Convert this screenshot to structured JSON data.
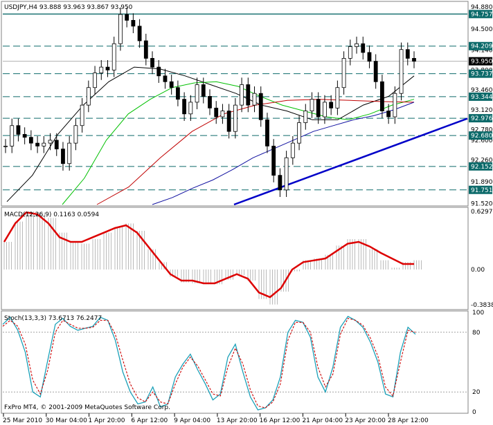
{
  "chart_data": [
    {
      "type": "candlestick",
      "title": "USDJPY,H4",
      "ohlc_text": "93.888 93.963 93.867 93.950",
      "ylim": [
        91.5,
        94.95
      ],
      "price_ticks": [
        "94.880",
        "94.500",
        "94.140",
        "93.800",
        "93.460",
        "93.120",
        "92.780",
        "92.600",
        "92.260",
        "91.890",
        "91.520"
      ],
      "price_tick_values": [
        94.88,
        94.5,
        94.14,
        93.8,
        93.46,
        93.12,
        92.78,
        92.6,
        92.26,
        91.89,
        91.52
      ],
      "levels": [
        {
          "value": 94.757,
          "label": "94.757",
          "style": "solid"
        },
        {
          "value": 94.209,
          "label": "94.209",
          "style": "dashed"
        },
        {
          "value": 93.737,
          "label": "93.737",
          "style": "dashed"
        },
        {
          "value": 93.344,
          "label": "93.344",
          "style": "dashed"
        },
        {
          "value": 92.976,
          "label": "92.976",
          "style": "dashed"
        },
        {
          "value": 92.68,
          "label": "92.680",
          "style": "dashed"
        },
        {
          "value": 92.152,
          "label": "92.152",
          "style": "dashed"
        },
        {
          "value": 91.751,
          "label": "91.751",
          "style": "dashed"
        }
      ],
      "current_price": {
        "value": 93.95,
        "label": "93.950"
      },
      "close_series": [
        92.5,
        92.85,
        92.7,
        92.65,
        92.55,
        92.5,
        92.55,
        92.6,
        92.45,
        92.2,
        92.55,
        92.85,
        93.2,
        93.5,
        93.75,
        93.85,
        93.8,
        94.25,
        94.75,
        94.65,
        94.55,
        94.3,
        94.0,
        93.85,
        93.7,
        93.6,
        93.5,
        93.3,
        93.05,
        93.25,
        93.55,
        93.35,
        93.15,
        93.0,
        93.1,
        92.75,
        93.2,
        93.55,
        93.2,
        93.4,
        92.95,
        92.5,
        92.0,
        91.75,
        92.3,
        92.55,
        92.9,
        93.1,
        93.3,
        93.0,
        93.25,
        93.15,
        93.5,
        94.0,
        94.2,
        94.25,
        94.1,
        93.95,
        93.6,
        93.1,
        93.0,
        93.4,
        94.15,
        94.0,
        93.95
      ],
      "moving_averages": [
        {
          "color": "#000000",
          "values": [
            91.55,
            92.0,
            92.7,
            93.2,
            93.6,
            93.85,
            93.82,
            93.7,
            93.55,
            93.4,
            93.2,
            93.1,
            92.95,
            92.95,
            93.2,
            93.35,
            93.7
          ]
        },
        {
          "color": "#00c000",
          "values": [
            91.5,
            91.95,
            92.6,
            93.05,
            93.3,
            93.5,
            93.58,
            93.6,
            93.52,
            93.35,
            93.2,
            93.1,
            93.0,
            92.95,
            93.05,
            93.2,
            93.3
          ]
        },
        {
          "color": "#c00000",
          "values": [
            91.5,
            91.8,
            92.3,
            92.75,
            93.05,
            93.2,
            93.28,
            93.3,
            93.28,
            93.26,
            93.25
          ]
        },
        {
          "color": "#1010a0",
          "values": [
            91.5,
            91.62,
            91.78,
            91.92,
            92.1,
            92.3,
            92.45,
            92.6,
            92.75,
            92.85,
            92.95,
            93.02,
            93.12,
            93.25
          ]
        }
      ],
      "trendline": {
        "color": "#0000c8",
        "from": 91.5,
        "to": 92.97
      }
    },
    {
      "type": "line",
      "title": "MACD(12,26,9) 0.1163 0.0594",
      "ylim": [
        -0.42,
        0.66
      ],
      "ticks": [
        "0.6297",
        "0.00",
        "-0.3838"
      ],
      "tick_values": [
        0.6297,
        0.0,
        -0.3838
      ],
      "signal_color": "#dd0000",
      "signal": [
        0.3,
        0.5,
        0.62,
        0.6,
        0.5,
        0.35,
        0.3,
        0.3,
        0.35,
        0.4,
        0.45,
        0.48,
        0.4,
        0.25,
        0.1,
        -0.05,
        -0.12,
        -0.12,
        -0.15,
        -0.15,
        -0.1,
        -0.05,
        -0.1,
        -0.25,
        -0.3,
        -0.2,
        0.0,
        0.08,
        0.1,
        0.12,
        0.2,
        0.28,
        0.3,
        0.25,
        0.18,
        0.12,
        0.06,
        0.06
      ],
      "histogram": [
        0.3,
        0.52,
        0.63,
        0.62,
        0.56,
        0.4,
        0.3,
        0.28,
        0.33,
        0.4,
        0.46,
        0.5,
        0.42,
        0.22,
        0.08,
        -0.08,
        -0.14,
        -0.15,
        -0.16,
        -0.16,
        -0.11,
        -0.06,
        -0.12,
        -0.32,
        -0.38,
        -0.24,
        -0.02,
        0.1,
        0.12,
        0.16,
        0.26,
        0.33,
        0.33,
        0.22,
        0.1,
        0.02,
        0.08,
        0.1
      ]
    },
    {
      "type": "line",
      "title": "Stoch(13,3,3) 73.6713 76.2477",
      "ylim": [
        0,
        100
      ],
      "ticks": [
        "100",
        "80",
        "20",
        "0"
      ],
      "tick_values": [
        100,
        80,
        20,
        0
      ],
      "main_color": "#1aa0b8",
      "signal_color": "#cc0000",
      "main": [
        88,
        95,
        82,
        60,
        20,
        15,
        52,
        88,
        94,
        86,
        82,
        84,
        86,
        95,
        92,
        72,
        40,
        20,
        8,
        10,
        25,
        5,
        8,
        35,
        48,
        58,
        42,
        28,
        12,
        18,
        55,
        68,
        40,
        15,
        2,
        4,
        12,
        35,
        80,
        92,
        90,
        75,
        35,
        20,
        45,
        85,
        96,
        92,
        85,
        70,
        50,
        18,
        15,
        60,
        85,
        78
      ],
      "signal": [
        86,
        92,
        86,
        68,
        32,
        18,
        42,
        80,
        92,
        88,
        84,
        84,
        85,
        92,
        92,
        78,
        52,
        28,
        14,
        10,
        20,
        10,
        8,
        28,
        45,
        55,
        46,
        32,
        18,
        16,
        45,
        64,
        48,
        22,
        6,
        4,
        10,
        28,
        72,
        90,
        90,
        80,
        45,
        25,
        38,
        78,
        94,
        92,
        87,
        74,
        56,
        25,
        16,
        50,
        82,
        80
      ]
    }
  ],
  "x_axis": {
    "labels": [
      "25 Mar 2010",
      "30 Mar 04:00",
      "1 Apr 20:00",
      "6 Apr 12:00",
      "9 Apr 04:00",
      "13 Apr 20:00",
      "16 Apr 12:00",
      "21 Apr 04:00",
      "23 Apr 20:00",
      "28 Apr 12:00"
    ]
  },
  "footer": "FxPro MT4, © 2001-2009 MetaQuotes Software Corp.",
  "colors": {
    "background": "#ffffff",
    "grid": "#9a9a9a",
    "level_line": "#0c6a6a",
    "level_tag": "#0c6a6a",
    "current_tag": "#000000",
    "border": "#808080"
  }
}
